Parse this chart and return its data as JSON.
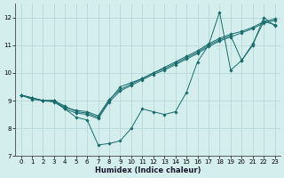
{
  "xlabel": "Humidex (Indice chaleur)",
  "background_color": "#d4eeee",
  "grid_color": "#b8d8d8",
  "line_color": "#1a6b6b",
  "xlim": [
    -0.5,
    23.5
  ],
  "ylim": [
    7,
    12.5
  ],
  "yticks": [
    7,
    8,
    9,
    10,
    11,
    12
  ],
  "xticks": [
    0,
    1,
    2,
    3,
    4,
    5,
    6,
    7,
    8,
    9,
    10,
    11,
    12,
    13,
    14,
    15,
    16,
    17,
    18,
    19,
    20,
    21,
    22,
    23
  ],
  "lines": [
    [
      9.2,
      9.1,
      9.0,
      9.0,
      8.7,
      8.4,
      8.3,
      7.4,
      7.45,
      7.55,
      8.0,
      8.7,
      8.6,
      8.5,
      8.6,
      9.3,
      10.4,
      11.0,
      12.2,
      10.1,
      10.45,
      11.0,
      12.0,
      11.7
    ],
    [
      9.2,
      9.1,
      9.0,
      9.0,
      8.8,
      8.6,
      8.55,
      8.4,
      9.0,
      9.5,
      9.65,
      9.8,
      10.0,
      10.15,
      10.35,
      10.55,
      10.75,
      11.0,
      11.2,
      11.35,
      10.45,
      11.05,
      11.85,
      11.75
    ],
    [
      9.2,
      9.1,
      9.0,
      9.0,
      8.75,
      8.65,
      8.6,
      8.45,
      9.05,
      9.4,
      9.6,
      9.8,
      10.0,
      10.2,
      10.4,
      10.6,
      10.8,
      11.05,
      11.25,
      11.4,
      11.5,
      11.65,
      11.85,
      11.95
    ],
    [
      9.2,
      9.05,
      9.0,
      8.95,
      8.7,
      8.55,
      8.5,
      8.35,
      8.95,
      9.35,
      9.55,
      9.75,
      9.95,
      10.1,
      10.3,
      10.5,
      10.7,
      10.95,
      11.15,
      11.3,
      11.45,
      11.6,
      11.8,
      11.9
    ]
  ]
}
